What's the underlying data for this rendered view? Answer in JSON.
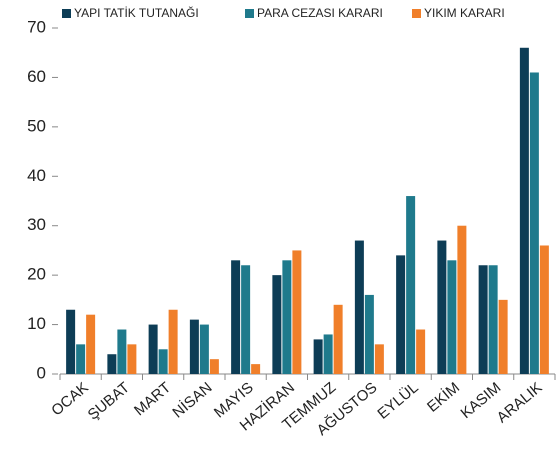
{
  "chart_data": {
    "type": "bar",
    "categories": [
      "OCAK",
      "ŞUBAT",
      "MART",
      "NİSAN",
      "MAYIS",
      "HAZİRAN",
      "TEMMUZ",
      "AĞUSTOS",
      "EYLÜL",
      "EKİM",
      "KASIM",
      "ARALIK"
    ],
    "series": [
      {
        "name": "YAPI TATİK TUTANAĞI",
        "color": "#0d3d56",
        "values": [
          13,
          4,
          10,
          11,
          23,
          20,
          7,
          27,
          24,
          27,
          22,
          66
        ]
      },
      {
        "name": "PARA CEZASI KARARI",
        "color": "#1f7a8c",
        "values": [
          6,
          9,
          5,
          10,
          22,
          23,
          8,
          16,
          36,
          23,
          22,
          61
        ]
      },
      {
        "name": "YIKIM KARARI",
        "color": "#f07f2a",
        "values": [
          12,
          6,
          13,
          3,
          2,
          25,
          14,
          6,
          9,
          30,
          15,
          26
        ]
      }
    ],
    "ylim": [
      0,
      70
    ],
    "yticks": [
      0,
      10,
      20,
      30,
      40,
      50,
      60,
      70
    ],
    "grid": false,
    "legend": "top"
  }
}
